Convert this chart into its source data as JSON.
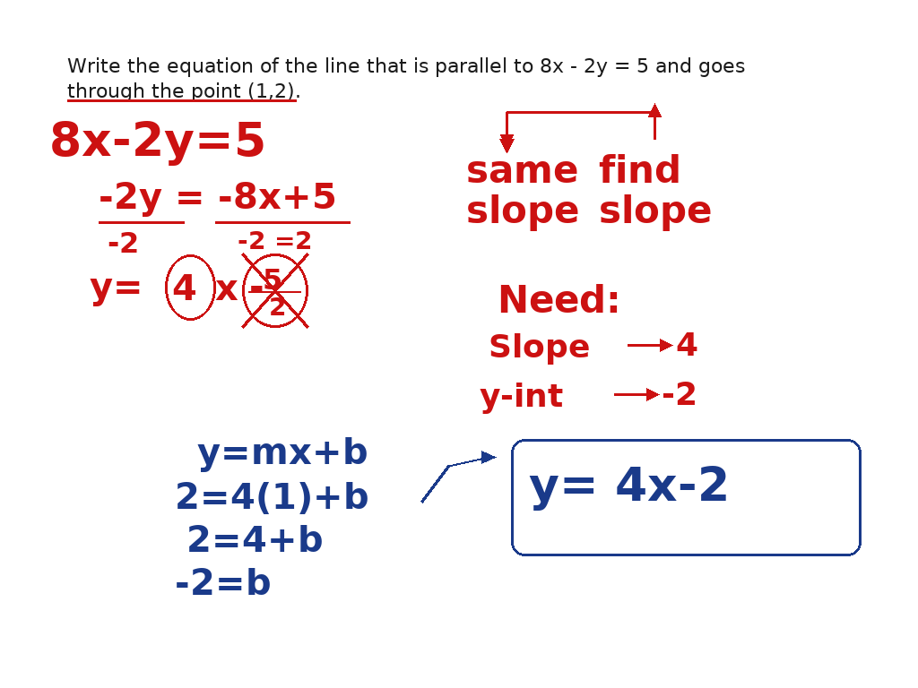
{
  "bg_color": "#ffffff",
  "red": "#cc1111",
  "blue": "#1a3a8a",
  "black": "#1a1a1a",
  "figsize": [
    10.24,
    7.68
  ],
  "dpi": 100
}
